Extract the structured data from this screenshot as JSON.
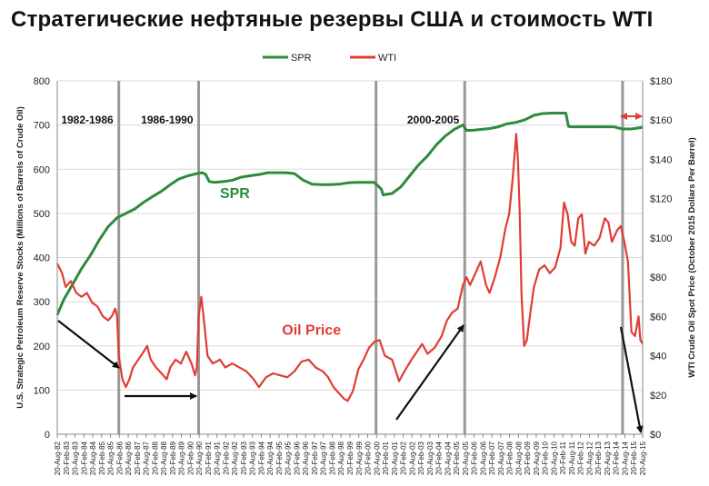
{
  "page": {
    "title": "Стратегические нефтяные резервы США и стоимость WTI"
  },
  "chart_data": {
    "type": "line",
    "title": "Стратегические нефтяные резервы США и стоимость WTI",
    "legend": {
      "placement": "top-center",
      "entries": [
        "SPR",
        "WTI"
      ]
    },
    "colors": {
      "spr": "#2e8b3e",
      "wti": "#e03c35",
      "vline": "#999999",
      "arrow": "#111111",
      "grid": "#d9d9d9"
    },
    "ylabel_left": "U.S. Strategic Petroleum Reserve Stocks (Millions of Barrels of Crude Oil)",
    "ylabel_right": "WTI Crude Oil Spot Price (October 2015 Dollars Per Barrel)",
    "ylim_left": [
      0,
      800
    ],
    "ylim_right": [
      0,
      180
    ],
    "yticks_left": [
      "0",
      "100",
      "200",
      "300",
      "400",
      "500",
      "600",
      "700",
      "800"
    ],
    "yticks_right": [
      "$0",
      "$20",
      "$40",
      "$60",
      "$80",
      "$100",
      "$120",
      "$140",
      "$160",
      "$180"
    ],
    "x_range": [
      1982.63,
      2015.63
    ],
    "x_ticks": [
      "20-Aug-82",
      "20-Feb-83",
      "20-Aug-83",
      "20-Feb-84",
      "20-Aug-84",
      "20-Feb-85",
      "20-Aug-85",
      "20-Feb-86",
      "20-Aug-86",
      "20-Feb-87",
      "20-Aug-87",
      "20-Feb-88",
      "20-Aug-88",
      "20-Feb-89",
      "20-Aug-89",
      "20-Feb-90",
      "20-Aug-90",
      "20-Feb-91",
      "20-Aug-91",
      "20-Feb-92",
      "20-Aug-92",
      "20-Feb-93",
      "20-Aug-93",
      "20-Feb-94",
      "20-Aug-94",
      "20-Feb-95",
      "20-Aug-95",
      "20-Feb-96",
      "20-Aug-96",
      "20-Feb-97",
      "20-Aug-97",
      "20-Feb-98",
      "20-Aug-98",
      "20-Feb-99",
      "20-Aug-99",
      "20-Feb-00",
      "20-Aug-00",
      "20-Feb-01",
      "20-Aug-01",
      "20-Feb-02",
      "20-Aug-02",
      "20-Feb-03",
      "20-Aug-03",
      "20-Feb-04",
      "20-Aug-04",
      "20-Feb-05",
      "20-Aug-05",
      "20-Feb-06",
      "20-Aug-06",
      "20-Feb-07",
      "20-Aug-07",
      "20-Feb-08",
      "20-Aug-08",
      "20-Feb-09",
      "20-Aug-09",
      "20-Feb-10",
      "20-Aug-10",
      "20-Feb-11",
      "20-Aug-11",
      "20-Feb-12",
      "20-Aug-12",
      "20-Feb-13",
      "20-Aug-13",
      "20-Feb-14",
      "20-Aug-14",
      "20-Feb-15",
      "20-Aug-15"
    ],
    "periods": [
      {
        "label": "1982-1986",
        "x": 1986.1
      },
      {
        "label": "1986-1990",
        "x": 1990.6
      },
      {
        "label": "2000-2005",
        "x": 2005.6
      }
    ],
    "vlines": [
      1986.1,
      1990.6,
      2000.6,
      2005.6,
      2014.5
    ],
    "annotations": [
      {
        "text": "SPR",
        "x": 1991.8,
        "y_left": 535,
        "color": "spr"
      },
      {
        "text": "Oil Price",
        "x": 1995.3,
        "y_left": 225,
        "color": "wti"
      }
    ],
    "series": [
      {
        "name": "SPR",
        "axis": "left",
        "points": [
          [
            1982.63,
            270
          ],
          [
            1983.0,
            305
          ],
          [
            1983.5,
            340
          ],
          [
            1984.0,
            375
          ],
          [
            1984.5,
            405
          ],
          [
            1985.0,
            440
          ],
          [
            1985.5,
            470
          ],
          [
            1986.0,
            490
          ],
          [
            1986.5,
            500
          ],
          [
            1987.0,
            510
          ],
          [
            1987.5,
            525
          ],
          [
            1988.0,
            538
          ],
          [
            1988.5,
            550
          ],
          [
            1989.0,
            565
          ],
          [
            1989.5,
            578
          ],
          [
            1990.0,
            585
          ],
          [
            1990.5,
            590
          ],
          [
            1990.8,
            592
          ],
          [
            1991.0,
            588
          ],
          [
            1991.2,
            572
          ],
          [
            1991.5,
            570
          ],
          [
            1992.0,
            572
          ],
          [
            1992.5,
            575
          ],
          [
            1993.0,
            582
          ],
          [
            1993.5,
            585
          ],
          [
            1994.0,
            588
          ],
          [
            1994.5,
            592
          ],
          [
            1995.0,
            592
          ],
          [
            1995.5,
            592
          ],
          [
            1996.0,
            590
          ],
          [
            1996.5,
            575
          ],
          [
            1997.0,
            566
          ],
          [
            1997.5,
            565
          ],
          [
            1998.0,
            565
          ],
          [
            1998.5,
            566
          ],
          [
            1999.0,
            569
          ],
          [
            1999.5,
            570
          ],
          [
            2000.0,
            570
          ],
          [
            2000.5,
            570
          ],
          [
            2000.9,
            555
          ],
          [
            2001.0,
            542
          ],
          [
            2001.5,
            545
          ],
          [
            2002.0,
            560
          ],
          [
            2002.5,
            585
          ],
          [
            2003.0,
            610
          ],
          [
            2003.5,
            630
          ],
          [
            2004.0,
            655
          ],
          [
            2004.5,
            675
          ],
          [
            2005.0,
            690
          ],
          [
            2005.5,
            700
          ],
          [
            2005.7,
            688
          ],
          [
            2006.0,
            688
          ],
          [
            2006.5,
            690
          ],
          [
            2007.0,
            692
          ],
          [
            2007.5,
            696
          ],
          [
            2008.0,
            703
          ],
          [
            2008.5,
            706
          ],
          [
            2009.0,
            712
          ],
          [
            2009.5,
            722
          ],
          [
            2010.0,
            726
          ],
          [
            2010.5,
            727
          ],
          [
            2011.0,
            727
          ],
          [
            2011.3,
            727
          ],
          [
            2011.45,
            697
          ],
          [
            2011.6,
            696
          ],
          [
            2012.0,
            696
          ],
          [
            2012.5,
            696
          ],
          [
            2013.0,
            696
          ],
          [
            2013.5,
            696
          ],
          [
            2014.0,
            696
          ],
          [
            2014.5,
            691
          ],
          [
            2015.0,
            691
          ],
          [
            2015.63,
            695
          ]
        ]
      },
      {
        "name": "WTI",
        "axis": "right",
        "points": [
          [
            1982.63,
            87
          ],
          [
            1982.9,
            82
          ],
          [
            1983.1,
            75
          ],
          [
            1983.4,
            78
          ],
          [
            1983.7,
            72
          ],
          [
            1984.0,
            70
          ],
          [
            1984.3,
            72
          ],
          [
            1984.6,
            67
          ],
          [
            1984.9,
            65
          ],
          [
            1985.2,
            60
          ],
          [
            1985.5,
            58
          ],
          [
            1985.7,
            60
          ],
          [
            1985.9,
            64
          ],
          [
            1986.0,
            60
          ],
          [
            1986.1,
            40
          ],
          [
            1986.3,
            28
          ],
          [
            1986.5,
            24
          ],
          [
            1986.7,
            28
          ],
          [
            1986.9,
            34
          ],
          [
            1987.2,
            38
          ],
          [
            1987.5,
            42
          ],
          [
            1987.7,
            45
          ],
          [
            1987.9,
            38
          ],
          [
            1988.2,
            34
          ],
          [
            1988.5,
            31
          ],
          [
            1988.8,
            28
          ],
          [
            1989.0,
            34
          ],
          [
            1989.3,
            38
          ],
          [
            1989.6,
            36
          ],
          [
            1989.9,
            42
          ],
          [
            1990.2,
            36
          ],
          [
            1990.4,
            30
          ],
          [
            1990.5,
            34
          ],
          [
            1990.6,
            60
          ],
          [
            1990.75,
            70
          ],
          [
            1990.9,
            58
          ],
          [
            1991.1,
            40
          ],
          [
            1991.4,
            36
          ],
          [
            1991.8,
            38
          ],
          [
            1992.1,
            34
          ],
          [
            1992.5,
            36
          ],
          [
            1992.9,
            34
          ],
          [
            1993.3,
            32
          ],
          [
            1993.7,
            28
          ],
          [
            1994.0,
            24
          ],
          [
            1994.4,
            29
          ],
          [
            1994.8,
            31
          ],
          [
            1995.2,
            30
          ],
          [
            1995.6,
            29
          ],
          [
            1996.0,
            32
          ],
          [
            1996.4,
            37
          ],
          [
            1996.8,
            38
          ],
          [
            1997.2,
            34
          ],
          [
            1997.6,
            32
          ],
          [
            1997.9,
            29
          ],
          [
            1998.2,
            24
          ],
          [
            1998.5,
            21
          ],
          [
            1998.8,
            18
          ],
          [
            1999.0,
            17
          ],
          [
            1999.3,
            22
          ],
          [
            1999.6,
            33
          ],
          [
            1999.9,
            38
          ],
          [
            2000.2,
            44
          ],
          [
            2000.5,
            47
          ],
          [
            2000.8,
            48
          ],
          [
            2001.1,
            40
          ],
          [
            2001.5,
            38
          ],
          [
            2001.9,
            27
          ],
          [
            2002.2,
            32
          ],
          [
            2002.6,
            38
          ],
          [
            2002.9,
            42
          ],
          [
            2003.2,
            46
          ],
          [
            2003.5,
            41
          ],
          [
            2003.9,
            44
          ],
          [
            2004.3,
            50
          ],
          [
            2004.6,
            58
          ],
          [
            2004.9,
            62
          ],
          [
            2005.2,
            64
          ],
          [
            2005.5,
            76
          ],
          [
            2005.7,
            80
          ],
          [
            2005.9,
            76
          ],
          [
            2006.2,
            82
          ],
          [
            2006.5,
            88
          ],
          [
            2006.8,
            76
          ],
          [
            2007.0,
            72
          ],
          [
            2007.3,
            80
          ],
          [
            2007.6,
            90
          ],
          [
            2007.9,
            105
          ],
          [
            2008.1,
            112
          ],
          [
            2008.3,
            130
          ],
          [
            2008.5,
            153
          ],
          [
            2008.6,
            140
          ],
          [
            2008.7,
            112
          ],
          [
            2008.8,
            72
          ],
          [
            2008.95,
            45
          ],
          [
            2009.1,
            48
          ],
          [
            2009.3,
            62
          ],
          [
            2009.5,
            75
          ],
          [
            2009.8,
            84
          ],
          [
            2010.1,
            86
          ],
          [
            2010.4,
            82
          ],
          [
            2010.7,
            85
          ],
          [
            2011.0,
            95
          ],
          [
            2011.2,
            118
          ],
          [
            2011.4,
            112
          ],
          [
            2011.6,
            98
          ],
          [
            2011.8,
            96
          ],
          [
            2012.0,
            110
          ],
          [
            2012.2,
            112
          ],
          [
            2012.4,
            92
          ],
          [
            2012.6,
            98
          ],
          [
            2012.9,
            96
          ],
          [
            2013.2,
            100
          ],
          [
            2013.5,
            110
          ],
          [
            2013.7,
            108
          ],
          [
            2013.9,
            98
          ],
          [
            2014.2,
            104
          ],
          [
            2014.4,
            106
          ],
          [
            2014.6,
            98
          ],
          [
            2014.8,
            88
          ],
          [
            2015.0,
            52
          ],
          [
            2015.2,
            50
          ],
          [
            2015.4,
            60
          ],
          [
            2015.5,
            48
          ],
          [
            2015.63,
            46
          ]
        ]
      }
    ]
  }
}
